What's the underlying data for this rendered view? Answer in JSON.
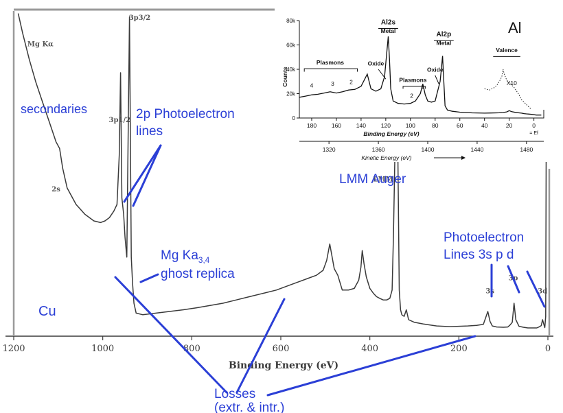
{
  "colors": {
    "annotation": "#2b3fd6",
    "trace": "#3a3a3a",
    "ink": "#111111"
  },
  "chart_data": [
    {
      "type": "line",
      "xlabel": "Binding Energy (eV)",
      "xlim": [
        1200,
        0
      ],
      "x_reversed": true,
      "x_ticks": [
        1200,
        1000,
        800,
        600,
        400,
        200,
        0
      ],
      "x_tick_labels": [
        "1200",
        "1000",
        "800",
        "600",
        "400",
        "200",
        "0"
      ],
      "spectrum": {
        "x": [
          1190,
          1180,
          1165,
          1150,
          1135,
          1120,
          1105,
          1097,
          1090,
          1080,
          1060,
          1040,
          1020,
          1005,
          995,
          985,
          975,
          968,
          963,
          960,
          957,
          953,
          950,
          946,
          943,
          940,
          936,
          933,
          930,
          925,
          910,
          880,
          850,
          820,
          790,
          760,
          730,
          700,
          670,
          640,
          610,
          580,
          560,
          540,
          520,
          505,
          497,
          490,
          486,
          480,
          472,
          462,
          448,
          435,
          425,
          420,
          417,
          413,
          408,
          400,
          392,
          385,
          378,
          370,
          362,
          355,
          350,
          347,
          343,
          340,
          337,
          334,
          331,
          328,
          323,
          318,
          313,
          300,
          280,
          250,
          220,
          200,
          180,
          160,
          145,
          140,
          135,
          130,
          125,
          115,
          100,
          90,
          85,
          80,
          76,
          72,
          65,
          55,
          45,
          35,
          25,
          20,
          15,
          12,
          9,
          7,
          5,
          3,
          1,
          0
        ],
        "y": [
          98,
          92,
          84,
          77,
          71,
          65,
          59,
          57,
          51,
          45,
          40,
          37,
          35,
          34.5,
          35,
          36,
          38,
          40,
          55,
          80,
          42,
          37,
          30,
          24,
          60,
          97,
          24,
          16,
          10,
          7,
          6.5,
          7,
          7.5,
          8,
          8.6,
          9.3,
          10,
          11,
          12,
          13,
          14,
          15.5,
          16.5,
          17.5,
          18.5,
          20,
          23,
          28,
          25,
          20.5,
          18.5,
          14,
          14,
          14.5,
          17,
          21,
          26,
          22,
          18,
          14.5,
          13,
          12,
          11.5,
          11,
          11,
          11.5,
          14,
          30,
          60,
          99,
          55,
          14,
          8,
          6.5,
          6,
          8,
          5,
          4.2,
          3.7,
          3.1,
          2.9,
          3.0,
          3.1,
          3.3,
          3.6,
          5.5,
          7.5,
          4.5,
          3.1,
          2.8,
          2.7,
          2.8,
          3.4,
          4.2,
          10,
          5,
          3,
          2.7,
          2.5,
          2.5,
          2.5,
          2.8,
          3.2,
          5,
          3.5,
          2.6,
          6,
          99,
          99,
          99
        ]
      },
      "peak_labels": [
        {
          "text": "Mg Kα",
          "x": 1140,
          "y": 88
        },
        {
          "text": "3p3/2",
          "x": 917,
          "y": 96
        },
        {
          "text": "2s",
          "x": 1105,
          "y": 44
        },
        {
          "text": "3p1/2",
          "x": 962,
          "y": 65
        },
        {
          "text": "LMM",
          "x": 370,
          "y": 47
        },
        {
          "text": "3s",
          "x": 130,
          "y": 13
        },
        {
          "text": "3p",
          "x": 78,
          "y": 17
        },
        {
          "text": "3d",
          "x": 12,
          "y": 13
        }
      ],
      "annotations": [
        {
          "id": "secondaries",
          "lines": [
            "secondaries"
          ]
        },
        {
          "id": "photoelectron-2p",
          "lines": [
            "2p Photoelectron",
            "lines"
          ]
        },
        {
          "id": "lmm-auger",
          "lines": [
            "LMM Auger"
          ]
        },
        {
          "id": "ghost",
          "lines": [
            "Mg Ka3,4",
            "ghost replica"
          ]
        },
        {
          "id": "photoelectron-lines",
          "lines": [
            "Photoelectron",
            "Lines 3s  p   d"
          ]
        },
        {
          "id": "cu",
          "lines": [
            "Cu"
          ]
        },
        {
          "id": "losses",
          "lines": [
            "Losses",
            "(extr. & intr.)"
          ]
        }
      ]
    },
    {
      "type": "line",
      "label": "Al",
      "xlabel": "Binding Energy (eV)",
      "x2label": "Kinetic Energy (eV)",
      "ylabel": "Counts",
      "xlim": [
        190,
        -8
      ],
      "x_reversed": true,
      "ylim": [
        0,
        80000
      ],
      "x_ticks": [
        180,
        160,
        140,
        120,
        100,
        80,
        60,
        40,
        20,
        0
      ],
      "x_tick_labels": [
        "180",
        "160",
        "140",
        "120",
        "100",
        "80",
        "60",
        "40",
        "20",
        "0"
      ],
      "x_zero_sublabel": "= Ef",
      "y_ticks": [
        0,
        20000,
        40000,
        60000,
        80000
      ],
      "y_tick_labels": [
        "0",
        "20k",
        "40k",
        "60k",
        "80k"
      ],
      "kinetic_ticks": [
        1320,
        1360,
        1400,
        1440,
        1480
      ],
      "kinetic_tick_labels": [
        "1320",
        "1360",
        "1400",
        "1440",
        "1480"
      ],
      "spectrum": {
        "x": [
          190,
          185,
          180,
          175,
          170,
          165,
          160,
          155,
          150,
          145,
          140,
          137,
          135,
          132,
          128,
          124,
          121,
          119,
          118,
          117,
          116,
          114,
          110,
          105,
          100,
          96,
          92,
          90,
          88,
          86,
          83,
          80,
          78,
          76,
          75,
          74,
          73,
          72,
          70,
          66,
          60,
          50,
          40,
          35,
          30,
          28,
          25,
          22,
          20,
          18,
          15,
          12,
          10,
          8,
          6,
          4,
          2,
          0,
          -2,
          -4,
          -6
        ],
        "y": [
          17000,
          18000,
          19000,
          19500,
          20500,
          21500,
          20500,
          21500,
          23000,
          23500,
          26000,
          32000,
          36000,
          24000,
          22000,
          24000,
          34000,
          56000,
          67000,
          48000,
          24000,
          14000,
          12000,
          11500,
          12000,
          14000,
          20000,
          28000,
          19000,
          14000,
          13000,
          14000,
          22000,
          30000,
          40000,
          51000,
          30000,
          10000,
          6500,
          5500,
          4800,
          4200,
          4000,
          4100,
          4200,
          4300,
          4500,
          5000,
          6000,
          5200,
          4600,
          4200,
          4000,
          3600,
          3400,
          3200,
          3000,
          2700,
          2400,
          2400,
          2400
        ]
      },
      "valence_x10": {
        "x": [
          40,
          36,
          32,
          30,
          28,
          26,
          25,
          24,
          22,
          20,
          18,
          16,
          14,
          12,
          10,
          8,
          6,
          4,
          2
        ],
        "y": [
          24000,
          23000,
          25000,
          27000,
          30000,
          34000,
          40000,
          36000,
          31000,
          29000,
          27000,
          25000,
          22000,
          19000,
          15000,
          13000,
          11000,
          9000,
          7000
        ]
      },
      "labels": [
        {
          "text": "Plasmons",
          "x": 165,
          "y": 44000
        },
        {
          "text": "Oxide",
          "x": 128,
          "y": 43000
        },
        {
          "text": "Al2s",
          "x": 118,
          "y": 77000
        },
        {
          "text": "Metal",
          "x": 118,
          "y": 70000
        },
        {
          "text": "Al2p",
          "x": 73,
          "y": 67000
        },
        {
          "text": "Metal",
          "x": 73,
          "y": 60000
        },
        {
          "text": "Oxide",
          "x": 80,
          "y": 38000
        },
        {
          "text": "Plasmons",
          "x": 98,
          "y": 29500
        },
        {
          "text": "Valence",
          "x": 22,
          "y": 54000
        },
        {
          "text": "X10",
          "x": 18,
          "y": 27000
        },
        {
          "text": "4",
          "x": 180,
          "y": 25000
        },
        {
          "text": "3",
          "x": 163,
          "y": 26500
        },
        {
          "text": "2",
          "x": 148,
          "y": 28000
        },
        {
          "text": "2",
          "x": 99,
          "y": 16500
        },
        {
          "text": "1",
          "x": 90,
          "y": 24000
        }
      ]
    }
  ]
}
